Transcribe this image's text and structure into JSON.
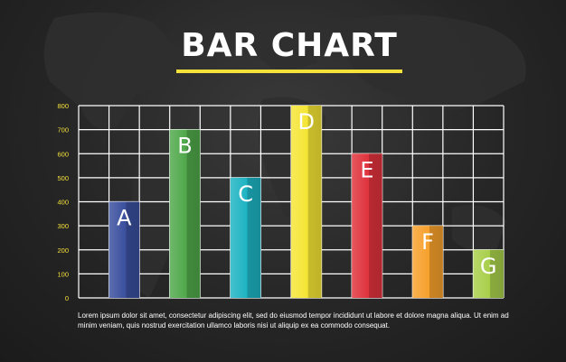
{
  "title": "BAR CHART",
  "colors": {
    "title_underline": "#f5e13a",
    "grid": "#ffffff",
    "tick_labels": "#f5e13a"
  },
  "chart_data": {
    "type": "bar",
    "categories": [
      "A",
      "B",
      "C",
      "D",
      "E",
      "F",
      "G"
    ],
    "values": [
      400,
      700,
      500,
      800,
      600,
      300,
      200
    ],
    "colors": [
      "#3a4f9e",
      "#4fa84a",
      "#1db3c3",
      "#f5e534",
      "#e0323c",
      "#f7a02b",
      "#a8cf4a"
    ],
    "ylim": [
      0,
      800
    ],
    "yticks": [
      0,
      100,
      200,
      300,
      400,
      500,
      600,
      700,
      800
    ],
    "grid": true,
    "data_labels": "category letters inside bar tops"
  },
  "caption": "Lorem ipsum dolor sit amet, consectetur adipiscing elit, sed do eiusmod tempor incididunt ut labore et dolore magna aliqua. Ut enim ad minim veniam, quis nostrud exercitation ullamco laboris nisi ut aliquip ex ea commodo consequat."
}
